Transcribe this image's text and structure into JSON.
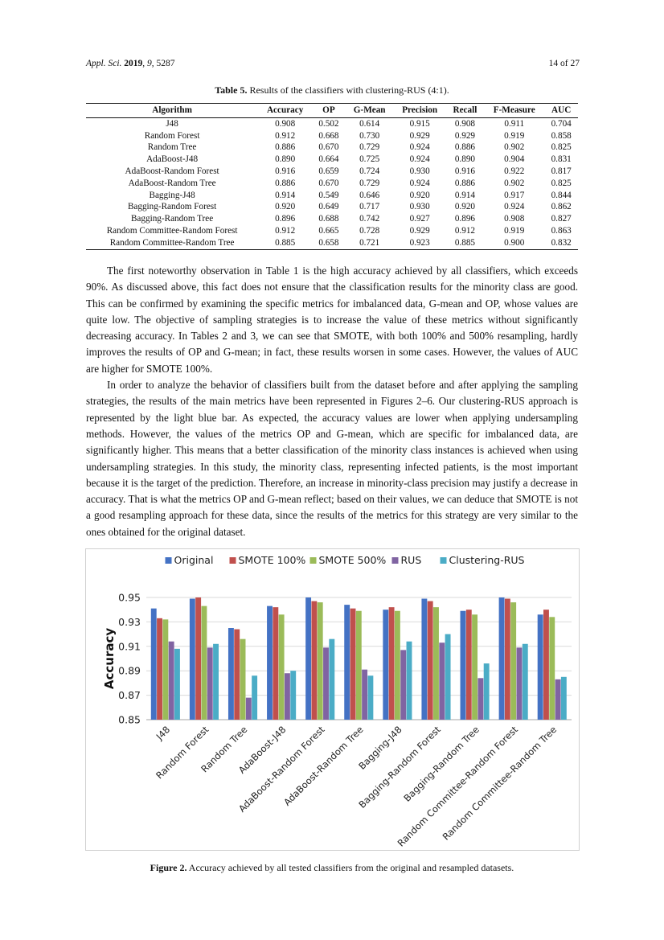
{
  "header": {
    "journal": "Appl. Sci.",
    "year": "2019",
    "volume": "9",
    "article": ", 5287",
    "page": "14 of 27"
  },
  "table": {
    "label": "Table 5.",
    "caption": "Results of the classifiers with clustering-RUS (4:1).",
    "columns": [
      "Algorithm",
      "Accuracy",
      "OP",
      "G-Mean",
      "Precision",
      "Recall",
      "F-Measure",
      "AUC"
    ],
    "rows": [
      [
        "J48",
        "0.908",
        "0.502",
        "0.614",
        "0.915",
        "0.908",
        "0.911",
        "0.704"
      ],
      [
        "Random Forest",
        "0.912",
        "0.668",
        "0.730",
        "0.929",
        "0.929",
        "0.919",
        "0.858"
      ],
      [
        "Random Tree",
        "0.886",
        "0.670",
        "0.729",
        "0.924",
        "0.886",
        "0.902",
        "0.825"
      ],
      [
        "AdaBoost-J48",
        "0.890",
        "0.664",
        "0.725",
        "0.924",
        "0.890",
        "0.904",
        "0.831"
      ],
      [
        "AdaBoost-Random Forest",
        "0.916",
        "0.659",
        "0.724",
        "0.930",
        "0.916",
        "0.922",
        "0.817"
      ],
      [
        "AdaBoost-Random Tree",
        "0.886",
        "0.670",
        "0.729",
        "0.924",
        "0.886",
        "0.902",
        "0.825"
      ],
      [
        "Bagging-J48",
        "0.914",
        "0.549",
        "0.646",
        "0.920",
        "0.914",
        "0.917",
        "0.844"
      ],
      [
        "Bagging-Random Forest",
        "0.920",
        "0.649",
        "0.717",
        "0.930",
        "0.920",
        "0.924",
        "0.862"
      ],
      [
        "Bagging-Random Tree",
        "0.896",
        "0.688",
        "0.742",
        "0.927",
        "0.896",
        "0.908",
        "0.827"
      ],
      [
        "Random Committee-Random Forest",
        "0.912",
        "0.665",
        "0.728",
        "0.929",
        "0.912",
        "0.919",
        "0.863"
      ],
      [
        "Random Committee-Random Tree",
        "0.885",
        "0.658",
        "0.721",
        "0.923",
        "0.885",
        "0.900",
        "0.832"
      ]
    ]
  },
  "paragraphs": [
    "The first noteworthy observation in Table 1 is the high accuracy achieved by all classifiers, which exceeds 90%. As discussed above, this fact does not ensure that the classification results for the minority class are good. This can be confirmed by examining the specific metrics for imbalanced data, G-mean and OP, whose values are quite low. The objective of sampling strategies is to increase the value of these metrics without significantly decreasing accuracy. In Tables 2 and 3, we can see that SMOTE, with both 100% and 500% resampling, hardly improves the results of OP and G-mean; in fact, these results worsen in some cases. However, the values of AUC are higher for SMOTE 100%.",
    "In order to analyze the behavior of classifiers built from the dataset before and after applying the sampling strategies, the results of the main metrics have been represented in Figures 2–6. Our clustering-RUS approach is represented by the light blue bar. As expected, the accuracy values are lower when applying undersampling methods. However, the values of the metrics OP and G-mean, which are specific for imbalanced data, are significantly higher. This means that a better classification of the minority class instances is achieved when using undersampling strategies. In this study, the minority class, representing infected patients, is the most important because it is the target of the prediction. Therefore, an increase in minority-class precision may justify a decrease in accuracy. That is what the metrics OP and G-mean reflect; based on their values, we can deduce that SMOTE is not a good resampling approach for these data, since the results of the metrics for this strategy are very similar to the ones obtained for the original dataset."
  ],
  "figure": {
    "label": "Figure 2.",
    "caption": "Accuracy achieved by all tested classifiers from the original and resampled datasets."
  },
  "chart_data": {
    "type": "bar",
    "title": "",
    "xlabel": "",
    "ylabel": "Accuracy",
    "ylim": [
      0.85,
      0.95
    ],
    "yticks": [
      "0.85",
      "0.87",
      "0.89",
      "0.91",
      "0.93",
      "0.95"
    ],
    "grid": true,
    "legend_position": "top",
    "categories": [
      "J48",
      "Random Forest",
      "Random Tree",
      "AdaBoost-J48",
      "AdaBoost-Random Forest",
      "AdaBoost-Random Tree",
      "Bagging-J48",
      "Bagging-Random Forest",
      "Bagging-Random Tree",
      "Random Committee-Random Forest",
      "Random Committee-Random Tree"
    ],
    "series": [
      {
        "name": "Original",
        "color": "#4472C4",
        "values": [
          0.941,
          0.949,
          0.925,
          0.943,
          0.95,
          0.944,
          0.94,
          0.949,
          0.939,
          0.95,
          0.936
        ]
      },
      {
        "name": "SMOTE 100%",
        "color": "#C0504D",
        "values": [
          0.933,
          0.95,
          0.924,
          0.942,
          0.947,
          0.941,
          0.942,
          0.947,
          0.94,
          0.949,
          0.94
        ]
      },
      {
        "name": "SMOTE 500%",
        "color": "#9BBB59",
        "values": [
          0.932,
          0.943,
          0.916,
          0.936,
          0.946,
          0.939,
          0.939,
          0.942,
          0.936,
          0.946,
          0.934
        ]
      },
      {
        "name": "RUS",
        "color": "#8064A2",
        "values": [
          0.914,
          0.909,
          0.868,
          0.888,
          0.909,
          0.891,
          0.907,
          0.913,
          0.884,
          0.909,
          0.883
        ]
      },
      {
        "name": "Clustering-RUS",
        "color": "#4BACC6",
        "values": [
          0.908,
          0.912,
          0.886,
          0.89,
          0.916,
          0.886,
          0.914,
          0.92,
          0.896,
          0.912,
          0.885
        ]
      }
    ]
  }
}
